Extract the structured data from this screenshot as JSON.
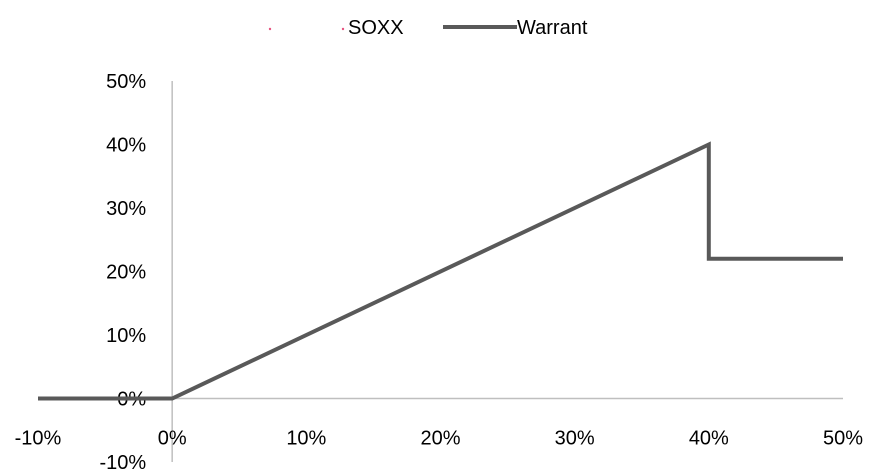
{
  "chart_data": {
    "type": "line",
    "legend_position": "top",
    "grid": false,
    "x_ticks": [
      "-10%",
      "0%",
      "10%",
      "20%",
      "30%",
      "40%",
      "50%"
    ],
    "y_ticks": [
      "-10%",
      "0%",
      "10%",
      "20%",
      "30%",
      "40%",
      "50%"
    ],
    "xlim": [
      -0.1,
      0.5
    ],
    "ylim": [
      -0.1,
      0.5
    ],
    "series": [
      {
        "name": "SOXX",
        "color": "#e75480",
        "style": "dotted",
        "points": []
      },
      {
        "name": "Warrant",
        "color": "#595959",
        "style": "solid",
        "points": [
          {
            "x": -0.1,
            "y": 0.0
          },
          {
            "x": 0.0,
            "y": 0.0
          },
          {
            "x": 0.4,
            "y": 0.4
          },
          {
            "x": 0.4,
            "y": 0.22
          },
          {
            "x": 0.5,
            "y": 0.22
          }
        ]
      }
    ]
  }
}
